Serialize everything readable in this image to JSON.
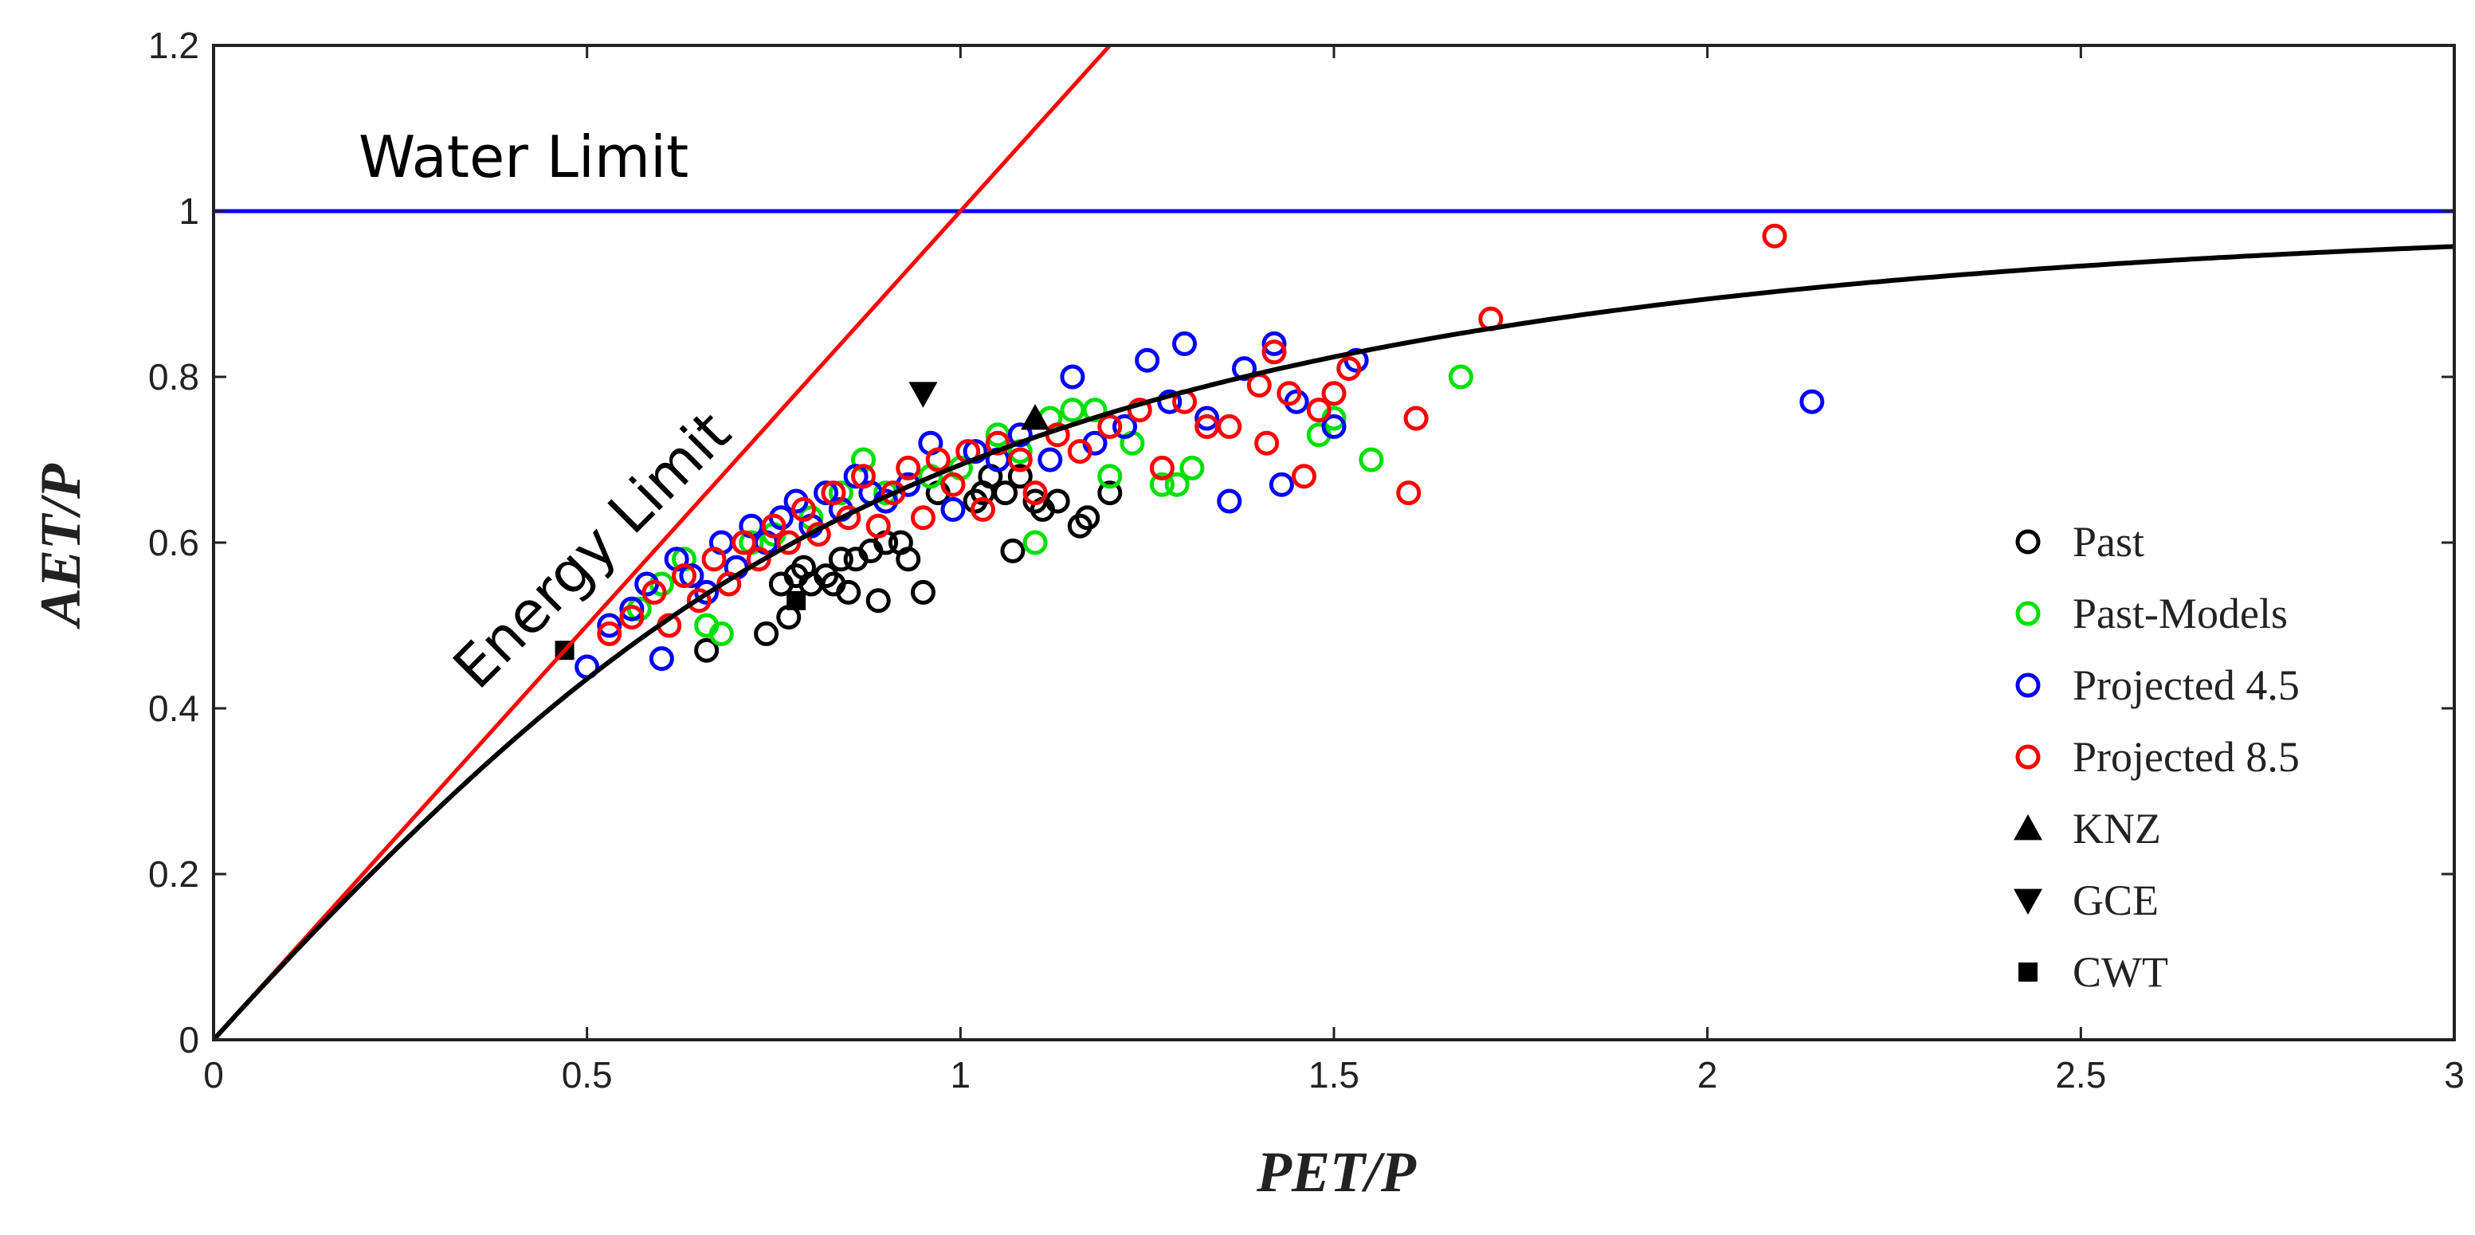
{
  "chart_data": {
    "type": "scatter",
    "xlabel": "PET/P",
    "ylabel": "AET/P",
    "xlim": [
      0,
      3
    ],
    "ylim": [
      0,
      1.2
    ],
    "xticks": [
      "0",
      "0.5",
      "1",
      "1.5",
      "2",
      "2.5",
      "3"
    ],
    "yticks": [
      "0",
      "0.2",
      "0.4",
      "0.6",
      "0.8",
      "1",
      "1.2"
    ],
    "grid": false,
    "legend_position": "bottom-right",
    "annotations": {
      "water_limit": "Water Limit",
      "energy_limit": "Energy Limit"
    },
    "reference_lines": [
      {
        "name": "Water Limit",
        "type": "horizontal",
        "y": 1.0,
        "color": "#0000ff"
      },
      {
        "name": "Energy Limit",
        "type": "identity",
        "slope": 1.0,
        "color": "#ff0000"
      },
      {
        "name": "Budyko curve",
        "type": "curve",
        "color": "#000000"
      }
    ],
    "series": [
      {
        "name": "Past",
        "marker": "circle-open",
        "color": "#000000",
        "points": [
          [
            0.66,
            0.47
          ],
          [
            0.74,
            0.49
          ],
          [
            0.76,
            0.55
          ],
          [
            0.77,
            0.51
          ],
          [
            0.78,
            0.56
          ],
          [
            0.79,
            0.57
          ],
          [
            0.8,
            0.55
          ],
          [
            0.82,
            0.56
          ],
          [
            0.83,
            0.55
          ],
          [
            0.84,
            0.58
          ],
          [
            0.85,
            0.54
          ],
          [
            0.86,
            0.58
          ],
          [
            0.88,
            0.59
          ],
          [
            0.89,
            0.53
          ],
          [
            0.9,
            0.6
          ],
          [
            0.92,
            0.6
          ],
          [
            0.93,
            0.58
          ],
          [
            0.95,
            0.54
          ],
          [
            0.97,
            0.66
          ],
          [
            1.02,
            0.65
          ],
          [
            1.03,
            0.66
          ],
          [
            1.04,
            0.68
          ],
          [
            1.06,
            0.66
          ],
          [
            1.07,
            0.59
          ],
          [
            1.08,
            0.68
          ],
          [
            1.1,
            0.65
          ],
          [
            1.11,
            0.64
          ],
          [
            1.13,
            0.65
          ],
          [
            1.16,
            0.62
          ],
          [
            1.17,
            0.63
          ],
          [
            1.2,
            0.66
          ]
        ]
      },
      {
        "name": "Past-Models",
        "marker": "circle-open",
        "color": "#00e000",
        "points": [
          [
            0.57,
            0.52
          ],
          [
            0.6,
            0.55
          ],
          [
            0.63,
            0.58
          ],
          [
            0.66,
            0.5
          ],
          [
            0.68,
            0.49
          ],
          [
            0.72,
            0.6
          ],
          [
            0.75,
            0.61
          ],
          [
            0.8,
            0.63
          ],
          [
            0.84,
            0.66
          ],
          [
            0.87,
            0.7
          ],
          [
            0.9,
            0.66
          ],
          [
            0.93,
            0.67
          ],
          [
            0.96,
            0.68
          ],
          [
            1.0,
            0.69
          ],
          [
            1.05,
            0.73
          ],
          [
            1.08,
            0.71
          ],
          [
            1.1,
            0.6
          ],
          [
            1.12,
            0.75
          ],
          [
            1.15,
            0.76
          ],
          [
            1.18,
            0.76
          ],
          [
            1.2,
            0.68
          ],
          [
            1.23,
            0.72
          ],
          [
            1.27,
            0.67
          ],
          [
            1.29,
            0.67
          ],
          [
            1.31,
            0.69
          ],
          [
            1.48,
            0.73
          ],
          [
            1.5,
            0.75
          ],
          [
            1.55,
            0.7
          ],
          [
            1.67,
            0.8
          ]
        ]
      },
      {
        "name": "Projected 4.5",
        "marker": "circle-open",
        "color": "#0000ff",
        "points": [
          [
            0.5,
            0.45
          ],
          [
            0.53,
            0.5
          ],
          [
            0.56,
            0.52
          ],
          [
            0.58,
            0.55
          ],
          [
            0.6,
            0.46
          ],
          [
            0.62,
            0.58
          ],
          [
            0.64,
            0.56
          ],
          [
            0.66,
            0.54
          ],
          [
            0.68,
            0.6
          ],
          [
            0.7,
            0.57
          ],
          [
            0.72,
            0.62
          ],
          [
            0.74,
            0.6
          ],
          [
            0.76,
            0.63
          ],
          [
            0.78,
            0.65
          ],
          [
            0.8,
            0.62
          ],
          [
            0.82,
            0.66
          ],
          [
            0.84,
            0.64
          ],
          [
            0.86,
            0.68
          ],
          [
            0.88,
            0.66
          ],
          [
            0.9,
            0.65
          ],
          [
            0.93,
            0.67
          ],
          [
            0.96,
            0.72
          ],
          [
            0.99,
            0.64
          ],
          [
            1.02,
            0.71
          ],
          [
            1.05,
            0.7
          ],
          [
            1.08,
            0.73
          ],
          [
            1.12,
            0.7
          ],
          [
            1.15,
            0.8
          ],
          [
            1.18,
            0.72
          ],
          [
            1.22,
            0.74
          ],
          [
            1.25,
            0.82
          ],
          [
            1.28,
            0.77
          ],
          [
            1.3,
            0.84
          ],
          [
            1.33,
            0.75
          ],
          [
            1.36,
            0.65
          ],
          [
            1.38,
            0.81
          ],
          [
            1.42,
            0.84
          ],
          [
            1.43,
            0.67
          ],
          [
            1.45,
            0.77
          ],
          [
            1.5,
            0.74
          ],
          [
            1.53,
            0.82
          ],
          [
            2.14,
            0.77
          ]
        ]
      },
      {
        "name": "Projected 8.5",
        "marker": "circle-open",
        "color": "#ff0000",
        "points": [
          [
            0.53,
            0.49
          ],
          [
            0.56,
            0.51
          ],
          [
            0.59,
            0.54
          ],
          [
            0.61,
            0.5
          ],
          [
            0.63,
            0.56
          ],
          [
            0.65,
            0.53
          ],
          [
            0.67,
            0.58
          ],
          [
            0.69,
            0.55
          ],
          [
            0.71,
            0.6
          ],
          [
            0.73,
            0.58
          ],
          [
            0.75,
            0.62
          ],
          [
            0.77,
            0.6
          ],
          [
            0.79,
            0.64
          ],
          [
            0.81,
            0.61
          ],
          [
            0.83,
            0.66
          ],
          [
            0.85,
            0.63
          ],
          [
            0.87,
            0.68
          ],
          [
            0.89,
            0.62
          ],
          [
            0.91,
            0.66
          ],
          [
            0.93,
            0.69
          ],
          [
            0.95,
            0.63
          ],
          [
            0.97,
            0.7
          ],
          [
            0.99,
            0.67
          ],
          [
            1.01,
            0.71
          ],
          [
            1.03,
            0.64
          ],
          [
            1.05,
            0.72
          ],
          [
            1.08,
            0.7
          ],
          [
            1.1,
            0.66
          ],
          [
            1.13,
            0.73
          ],
          [
            1.16,
            0.71
          ],
          [
            1.2,
            0.74
          ],
          [
            1.24,
            0.76
          ],
          [
            1.27,
            0.69
          ],
          [
            1.3,
            0.77
          ],
          [
            1.33,
            0.74
          ],
          [
            1.36,
            0.74
          ],
          [
            1.4,
            0.79
          ],
          [
            1.41,
            0.72
          ],
          [
            1.42,
            0.83
          ],
          [
            1.44,
            0.78
          ],
          [
            1.46,
            0.68
          ],
          [
            1.48,
            0.76
          ],
          [
            1.5,
            0.78
          ],
          [
            1.52,
            0.81
          ],
          [
            1.6,
            0.66
          ],
          [
            1.61,
            0.75
          ],
          [
            1.71,
            0.87
          ],
          [
            2.09,
            0.97
          ]
        ]
      },
      {
        "name": "KNZ",
        "marker": "triangle-up",
        "color": "#000000",
        "points": [
          [
            1.1,
            0.75
          ]
        ]
      },
      {
        "name": "GCE",
        "marker": "triangle-down",
        "color": "#000000",
        "points": [
          [
            0.95,
            0.78
          ]
        ]
      },
      {
        "name": "CWT",
        "marker": "square",
        "color": "#000000",
        "points": [
          [
            0.47,
            0.47
          ],
          [
            0.78,
            0.53
          ]
        ]
      }
    ]
  }
}
